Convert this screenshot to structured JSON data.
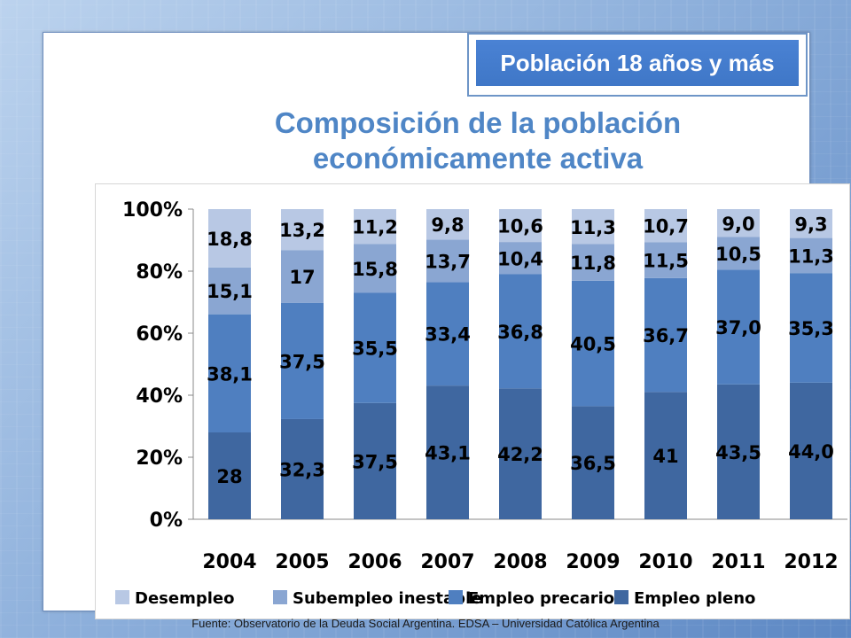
{
  "header": {
    "badge": "Población 18 años y más",
    "title_line1": "Composición de la población",
    "title_line2": "económicamente activa"
  },
  "footer": {
    "source": "Fuente: Observatorio de la Deuda Social Argentina. EDSA – Universidad Católica Argentina"
  },
  "chart_data": {
    "type": "bar",
    "stacked": "percent",
    "categories": [
      "2004",
      "2005",
      "2006",
      "2007",
      "2008",
      "2009",
      "2010",
      "2011",
      "2012"
    ],
    "series": [
      {
        "name": "Empleo pleno",
        "color": "#3f67a0",
        "values": [
          28,
          32.3,
          37.5,
          43.1,
          42.2,
          36.5,
          41,
          43.5,
          44.0
        ],
        "labels": [
          "28",
          "32,3",
          "37,5",
          "43,1",
          "42,2",
          "36,5",
          "41",
          "43,5",
          "44,0"
        ]
      },
      {
        "name": "Empleo precario",
        "color": "#4f7fc0",
        "values": [
          38.1,
          37.5,
          35.5,
          33.4,
          36.8,
          40.5,
          36.7,
          37.0,
          35.3
        ],
        "labels": [
          "38,1",
          "37,5",
          "35,5",
          "33,4",
          "36,8",
          "40,5",
          "36,7",
          "37,0",
          "35,3"
        ]
      },
      {
        "name": "Subempleo inestable",
        "color": "#8aa6d2",
        "values": [
          15.1,
          17,
          15.8,
          13.7,
          10.4,
          11.8,
          11.5,
          10.5,
          11.3
        ],
        "labels": [
          "15,1",
          "17",
          "15,8",
          "13,7",
          "10,4",
          "11,8",
          "11,5",
          "10,5",
          "11,3"
        ]
      },
      {
        "name": "Desempleo",
        "color": "#b8c8e4",
        "values": [
          18.8,
          13.2,
          11.2,
          9.8,
          10.6,
          11.3,
          10.7,
          9.0,
          9.3
        ],
        "labels": [
          "18,8",
          "13,2",
          "11,2",
          "9,8",
          "10,6",
          "11,3",
          "10,7",
          "9,0",
          "9,3"
        ]
      }
    ],
    "yticks": [
      "0%",
      "20%",
      "40%",
      "60%",
      "80%",
      "100%"
    ],
    "ylim": [
      0,
      100
    ],
    "legend_position": "bottom",
    "grid": false
  }
}
